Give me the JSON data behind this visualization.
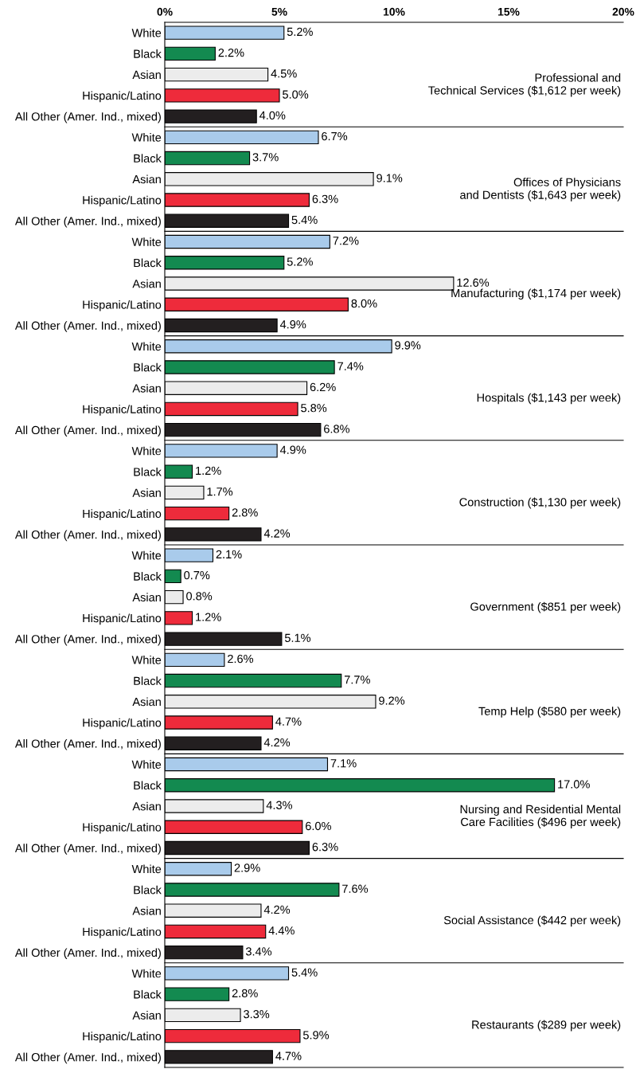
{
  "chart_data": {
    "type": "bar",
    "orientation": "horizontal",
    "categories": [
      "White",
      "Black",
      "Asian",
      "Hispanic/Latino",
      "All Other (Amer. Ind., mixed)",
      "White",
      "Black",
      "Asian",
      "Hispanic/Latino",
      "All Other (Amer. Ind., mixed)",
      "White",
      "Black",
      "Asian",
      "Hispanic/Latino",
      "All Other (Amer. Ind., mixed)",
      "White",
      "Black",
      "Asian",
      "Hispanic/Latino",
      "All Other (Amer. Ind., mixed)",
      "White",
      "Black",
      "Asian",
      "Hispanic/Latino",
      "All Other (Amer. Ind., mixed)",
      "White",
      "Black",
      "Asian",
      "Hispanic/Latino",
      "All Other (Amer. Ind., mixed)",
      "White",
      "Black",
      "Asian",
      "Hispanic/Latino",
      "All Other (Amer. Ind., mixed)",
      "White",
      "Black",
      "Asian",
      "Hispanic/Latino",
      "All Other (Amer. Ind., mixed)",
      "White",
      "Black",
      "Asian",
      "Hispanic/Latino",
      "All Other (Amer. Ind., mixed)",
      "White",
      "Black",
      "Asian",
      "Hispanic/Latino",
      "All Other (Amer. Ind., mixed)"
    ],
    "values": [
      5.2,
      2.2,
      4.5,
      5.0,
      4.0,
      6.7,
      3.7,
      9.1,
      6.3,
      5.4,
      7.2,
      5.2,
      12.6,
      8.0,
      4.9,
      9.9,
      7.4,
      6.2,
      5.8,
      6.8,
      4.9,
      1.2,
      1.7,
      2.8,
      4.2,
      2.1,
      0.7,
      0.8,
      1.2,
      5.1,
      2.6,
      7.7,
      9.2,
      4.7,
      4.2,
      7.1,
      17.0,
      4.3,
      6.0,
      6.3,
      2.9,
      7.6,
      4.2,
      4.4,
      3.4,
      5.4,
      2.8,
      3.3,
      5.9,
      4.7
    ],
    "value_labels": [
      "5.2%",
      "2.2%",
      "4.5%",
      "5.0%",
      "4.0%",
      "6.7%",
      "3.7%",
      "9.1%",
      "6.3%",
      "5.4%",
      "7.2%",
      "5.2%",
      "12.6%",
      "8.0%",
      "4.9%",
      "9.9%",
      "7.4%",
      "6.2%",
      "5.8%",
      "6.8%",
      "4.9%",
      "1.2%",
      "1.7%",
      "2.8%",
      "4.2%",
      "2.1%",
      "0.7%",
      "0.8%",
      "1.2%",
      "5.1%",
      "2.6%",
      "7.7%",
      "9.2%",
      "4.7%",
      "4.2%",
      "7.1%",
      "17.0%",
      "4.3%",
      "6.0%",
      "6.3%",
      "2.9%",
      "7.6%",
      "4.2%",
      "4.4%",
      "3.4%",
      "5.4%",
      "2.8%",
      "3.3%",
      "5.9%",
      "4.7%"
    ],
    "colors": [
      "#a9cbeb",
      "#138a50",
      "#ececec",
      "#ee2b3b",
      "#231f20",
      "#a9cbeb",
      "#138a50",
      "#ececec",
      "#ee2b3b",
      "#231f20",
      "#a9cbeb",
      "#138a50",
      "#ececec",
      "#ee2b3b",
      "#231f20",
      "#a9cbeb",
      "#138a50",
      "#ececec",
      "#ee2b3b",
      "#231f20",
      "#a9cbeb",
      "#138a50",
      "#ececec",
      "#ee2b3b",
      "#231f20",
      "#a9cbeb",
      "#138a50",
      "#ececec",
      "#ee2b3b",
      "#231f20",
      "#a9cbeb",
      "#138a50",
      "#ececec",
      "#ee2b3b",
      "#231f20",
      "#a9cbeb",
      "#138a50",
      "#ececec",
      "#ee2b3b",
      "#231f20",
      "#a9cbeb",
      "#138a50",
      "#ececec",
      "#ee2b3b",
      "#231f20",
      "#a9cbeb",
      "#138a50",
      "#ececec",
      "#ee2b3b",
      "#231f20"
    ],
    "xlim": [
      0,
      20
    ],
    "xticks": [
      {
        "value": 0,
        "label": "0%"
      },
      {
        "value": 5,
        "label": "5%"
      },
      {
        "value": 10,
        "label": "10%"
      },
      {
        "value": 15,
        "label": "15%"
      },
      {
        "value": 20,
        "label": "20%"
      }
    ],
    "annotations": [
      "Professional and\nTechnical Services ($1,612 per week)",
      "Offices of Physicians\nand Dentists ($1,643 per week)",
      "Manufacturing ($1,174 per week)",
      "Hospitals ($1,143 per week)",
      "Construction ($1,130 per week)",
      "Government ($851 per week)",
      "Temp Help ($580 per week)",
      "Nursing and Residential Mental\nCare Facilities ($496 per week)",
      "Social Assistance ($442 per week)",
      "Restaurants ($289 per week)"
    ]
  }
}
